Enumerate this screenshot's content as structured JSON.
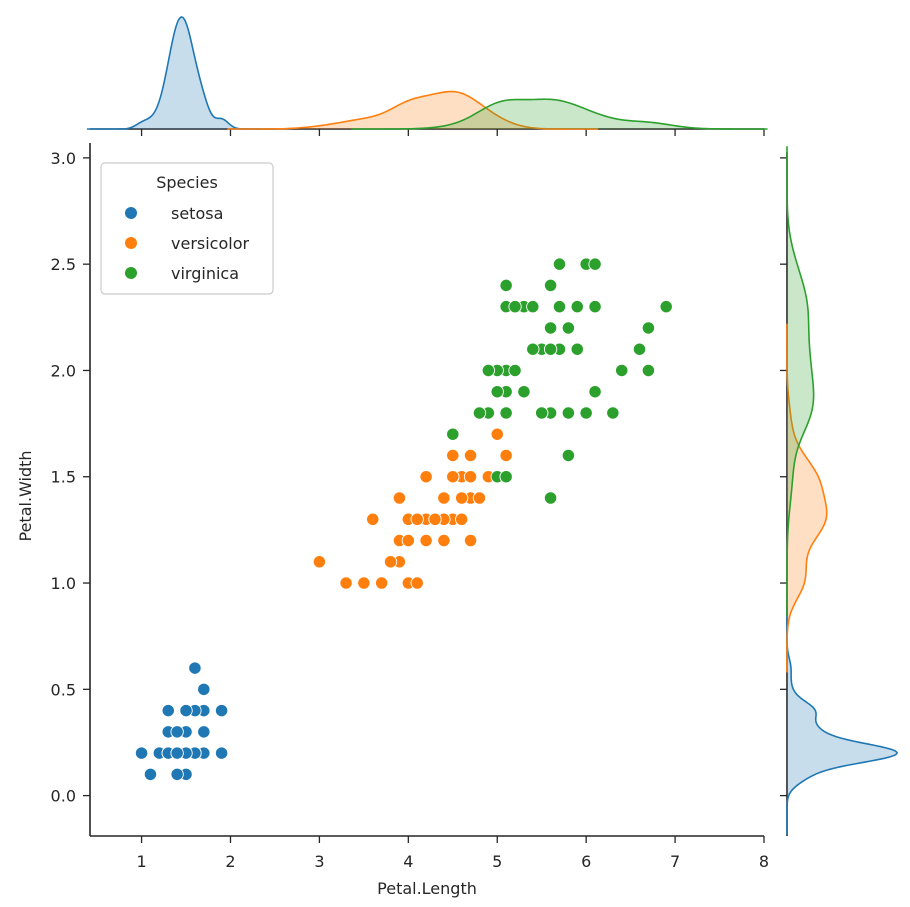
{
  "chart_data": {
    "type": "scatter",
    "title": "",
    "xlabel": "Petal.Length",
    "ylabel": "Petal.Width",
    "xlim": [
      0.42,
      8.0
    ],
    "ylim": [
      -0.19,
      3.07
    ],
    "xticks": [
      1,
      2,
      3,
      4,
      5,
      6,
      7,
      8
    ],
    "xtick_labels": [
      "1",
      "2",
      "3",
      "4",
      "5",
      "6",
      "7",
      "8"
    ],
    "yticks": [
      0.0,
      0.5,
      1.0,
      1.5,
      2.0,
      2.5,
      3.0
    ],
    "ytick_labels": [
      "0.0",
      "0.5",
      "1.0",
      "1.5",
      "2.0",
      "2.5",
      "3.0"
    ],
    "grid": false,
    "legend": {
      "title": "Species",
      "placement": "top-left"
    },
    "marginals": {
      "top": "kde of Petal.Length by Species",
      "right": "kde of Petal.Width by Species"
    },
    "series": [
      {
        "name": "setosa",
        "color": "#1f77b4",
        "x": [
          1.4,
          1.4,
          1.3,
          1.5,
          1.4,
          1.7,
          1.4,
          1.5,
          1.4,
          1.5,
          1.5,
          1.6,
          1.4,
          1.1,
          1.2,
          1.5,
          1.3,
          1.4,
          1.7,
          1.5,
          1.7,
          1.5,
          1.0,
          1.7,
          1.9,
          1.6,
          1.6,
          1.5,
          1.4,
          1.6,
          1.6,
          1.5,
          1.5,
          1.4,
          1.5,
          1.2,
          1.3,
          1.4,
          1.3,
          1.5,
          1.3,
          1.3,
          1.3,
          1.6,
          1.9,
          1.4,
          1.6,
          1.4,
          1.5,
          1.4
        ],
        "y": [
          0.2,
          0.2,
          0.2,
          0.2,
          0.2,
          0.4,
          0.3,
          0.2,
          0.2,
          0.1,
          0.2,
          0.2,
          0.1,
          0.1,
          0.2,
          0.4,
          0.4,
          0.3,
          0.3,
          0.3,
          0.2,
          0.4,
          0.2,
          0.5,
          0.2,
          0.2,
          0.4,
          0.2,
          0.2,
          0.2,
          0.2,
          0.4,
          0.1,
          0.2,
          0.2,
          0.2,
          0.2,
          0.1,
          0.2,
          0.2,
          0.3,
          0.3,
          0.2,
          0.6,
          0.4,
          0.3,
          0.2,
          0.2,
          0.2,
          0.2
        ]
      },
      {
        "name": "versicolor",
        "color": "#ff7f0e",
        "x": [
          4.7,
          4.5,
          4.9,
          4.0,
          4.6,
          4.5,
          4.7,
          3.3,
          4.6,
          3.9,
          3.5,
          4.2,
          4.0,
          4.7,
          3.6,
          4.4,
          4.5,
          4.1,
          4.5,
          3.9,
          4.8,
          4.0,
          4.9,
          4.7,
          4.3,
          4.4,
          4.8,
          5.0,
          4.5,
          3.5,
          3.8,
          3.7,
          3.9,
          5.1,
          4.5,
          4.5,
          4.7,
          4.4,
          4.1,
          4.0,
          4.4,
          4.6,
          4.0,
          3.3,
          4.2,
          4.2,
          4.2,
          4.3,
          3.0,
          4.1
        ],
        "y": [
          1.4,
          1.5,
          1.5,
          1.3,
          1.5,
          1.3,
          1.6,
          1.0,
          1.3,
          1.4,
          1.0,
          1.5,
          1.0,
          1.4,
          1.3,
          1.4,
          1.5,
          1.0,
          1.5,
          1.1,
          1.8,
          1.3,
          1.5,
          1.2,
          1.3,
          1.4,
          1.4,
          1.7,
          1.5,
          1.0,
          1.1,
          1.0,
          1.2,
          1.6,
          1.5,
          1.6,
          1.5,
          1.3,
          1.3,
          1.3,
          1.2,
          1.4,
          1.2,
          1.0,
          1.3,
          1.2,
          1.3,
          1.3,
          1.1,
          1.3
        ]
      },
      {
        "name": "virginica",
        "color": "#2ca02c",
        "x": [
          6.0,
          5.1,
          5.9,
          5.6,
          5.8,
          6.6,
          4.5,
          6.3,
          5.8,
          6.1,
          5.1,
          5.3,
          5.5,
          5.0,
          5.1,
          5.3,
          5.5,
          6.7,
          6.9,
          5.0,
          5.7,
          4.9,
          6.7,
          4.9,
          5.7,
          6.0,
          4.8,
          4.9,
          5.6,
          5.8,
          6.1,
          6.4,
          5.6,
          5.1,
          5.6,
          6.1,
          5.6,
          5.5,
          4.8,
          5.4,
          5.6,
          5.1,
          5.1,
          5.9,
          5.7,
          5.2,
          5.0,
          5.2,
          5.4,
          5.1
        ],
        "y": [
          2.5,
          1.9,
          2.1,
          1.8,
          2.2,
          2.1,
          1.7,
          1.8,
          1.8,
          2.5,
          2.0,
          1.9,
          2.1,
          2.0,
          2.4,
          2.3,
          1.8,
          2.2,
          2.3,
          1.5,
          2.3,
          2.0,
          2.0,
          1.8,
          2.1,
          1.8,
          1.8,
          1.8,
          2.1,
          1.6,
          1.9,
          2.0,
          2.2,
          1.5,
          1.4,
          2.3,
          2.4,
          1.8,
          1.8,
          2.1,
          2.4,
          2.3,
          1.9,
          2.3,
          2.5,
          2.3,
          1.9,
          2.0,
          2.3,
          1.8
        ]
      }
    ]
  }
}
